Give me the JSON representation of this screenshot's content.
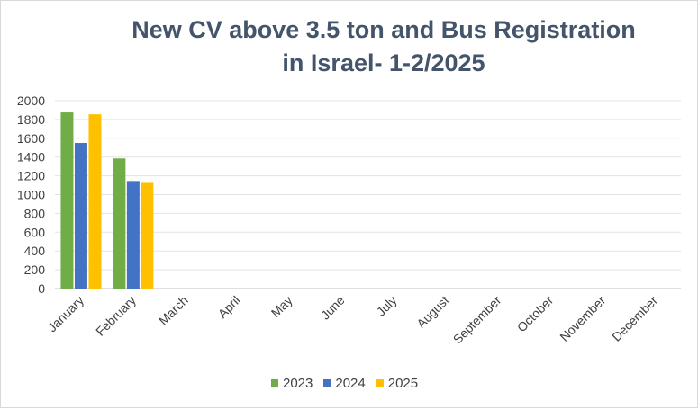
{
  "chart_data": {
    "type": "bar",
    "title_line1": "New CV above 3.5 ton and Bus Registration",
    "title_line2": "in Israel- 1-2/2025",
    "xlabel": "",
    "ylabel": "",
    "ylim": [
      0,
      2000
    ],
    "yticks": [
      0,
      200,
      400,
      600,
      800,
      1000,
      1200,
      1400,
      1600,
      1800,
      2000
    ],
    "grid": true,
    "legend_position": "bottom",
    "categories": [
      "January",
      "February",
      "March",
      "April",
      "May",
      "June",
      "July",
      "August",
      "September",
      "October",
      "November",
      "December"
    ],
    "series": [
      {
        "name": "2023",
        "color": "#70ad47",
        "values": [
          1875,
          1385,
          null,
          null,
          null,
          null,
          null,
          null,
          null,
          null,
          null,
          null
        ]
      },
      {
        "name": "2024",
        "color": "#4472c4",
        "values": [
          1550,
          1145,
          null,
          null,
          null,
          null,
          null,
          null,
          null,
          null,
          null,
          null
        ]
      },
      {
        "name": "2025",
        "color": "#ffc000",
        "values": [
          1855,
          1125,
          null,
          null,
          null,
          null,
          null,
          null,
          null,
          null,
          null,
          null
        ]
      }
    ]
  }
}
